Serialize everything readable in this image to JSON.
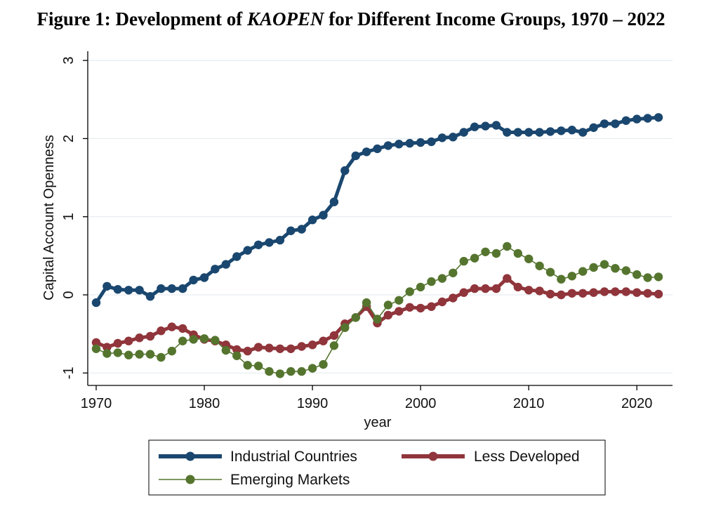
{
  "figure": {
    "title_prefix": "Figure 1: Development of ",
    "title_italic": "KAOPEN",
    "title_suffix": " for Different Income Groups, 1970 – 2022"
  },
  "chart_data": {
    "type": "line",
    "title": "Figure 1: Development of KAOPEN for Different Income Groups, 1970 – 2022",
    "xlabel": "year",
    "ylabel": "Capital Account Openness",
    "xlim": [
      1970,
      2022
    ],
    "ylim": [
      -1.05,
      3.1
    ],
    "xticks": [
      1970,
      1980,
      1990,
      2000,
      2010,
      2020
    ],
    "yticks": [
      -1,
      0,
      1,
      2,
      3
    ],
    "grid": true,
    "legend_position": "bottom",
    "x": [
      1970,
      1971,
      1972,
      1973,
      1974,
      1975,
      1976,
      1977,
      1978,
      1979,
      1980,
      1981,
      1982,
      1983,
      1984,
      1985,
      1986,
      1987,
      1988,
      1989,
      1990,
      1991,
      1992,
      1993,
      1994,
      1995,
      1996,
      1997,
      1998,
      1999,
      2000,
      2001,
      2002,
      2003,
      2004,
      2005,
      2006,
      2007,
      2008,
      2009,
      2010,
      2011,
      2012,
      2013,
      2014,
      2015,
      2016,
      2017,
      2018,
      2019,
      2020,
      2021,
      2022
    ],
    "series": [
      {
        "name": "Industrial Countries",
        "color": "#1a476f",
        "values": [
          -0.1,
          0.11,
          0.07,
          0.06,
          0.06,
          -0.02,
          0.08,
          0.08,
          0.08,
          0.19,
          0.22,
          0.33,
          0.39,
          0.49,
          0.57,
          0.64,
          0.67,
          0.7,
          0.82,
          0.84,
          0.96,
          1.02,
          1.19,
          1.59,
          1.78,
          1.83,
          1.87,
          1.91,
          1.93,
          1.94,
          1.95,
          1.96,
          2.01,
          2.02,
          2.08,
          2.15,
          2.16,
          2.17,
          2.08,
          2.08,
          2.08,
          2.08,
          2.09,
          2.1,
          2.11,
          2.08,
          2.14,
          2.19,
          2.19,
          2.23,
          2.25,
          2.26,
          2.27
        ]
      },
      {
        "name": "Less Developed",
        "color": "#90353b",
        "values": [
          -0.61,
          -0.67,
          -0.62,
          -0.59,
          -0.55,
          -0.53,
          -0.46,
          -0.41,
          -0.43,
          -0.51,
          -0.57,
          -0.59,
          -0.64,
          -0.7,
          -0.72,
          -0.67,
          -0.68,
          -0.69,
          -0.69,
          -0.66,
          -0.64,
          -0.59,
          -0.52,
          -0.37,
          -0.29,
          -0.15,
          -0.36,
          -0.26,
          -0.21,
          -0.16,
          -0.17,
          -0.15,
          -0.09,
          -0.04,
          0.03,
          0.08,
          0.08,
          0.08,
          0.21,
          0.1,
          0.06,
          0.05,
          0.01,
          0.0,
          0.02,
          0.02,
          0.03,
          0.04,
          0.04,
          0.04,
          0.03,
          0.02,
          0.01
        ]
      },
      {
        "name": "Emerging Markets",
        "color": "#55752f",
        "values": [
          -0.69,
          -0.75,
          -0.74,
          -0.77,
          -0.76,
          -0.76,
          -0.8,
          -0.72,
          -0.59,
          -0.57,
          -0.56,
          -0.58,
          -0.71,
          -0.78,
          -0.9,
          -0.91,
          -0.98,
          -1.01,
          -0.98,
          -0.98,
          -0.94,
          -0.89,
          -0.65,
          -0.42,
          -0.29,
          -0.1,
          -0.31,
          -0.13,
          -0.07,
          0.04,
          0.1,
          0.17,
          0.21,
          0.28,
          0.43,
          0.47,
          0.55,
          0.53,
          0.62,
          0.53,
          0.46,
          0.37,
          0.29,
          0.2,
          0.24,
          0.3,
          0.35,
          0.39,
          0.34,
          0.31,
          0.26,
          0.22,
          0.23
        ]
      }
    ]
  }
}
